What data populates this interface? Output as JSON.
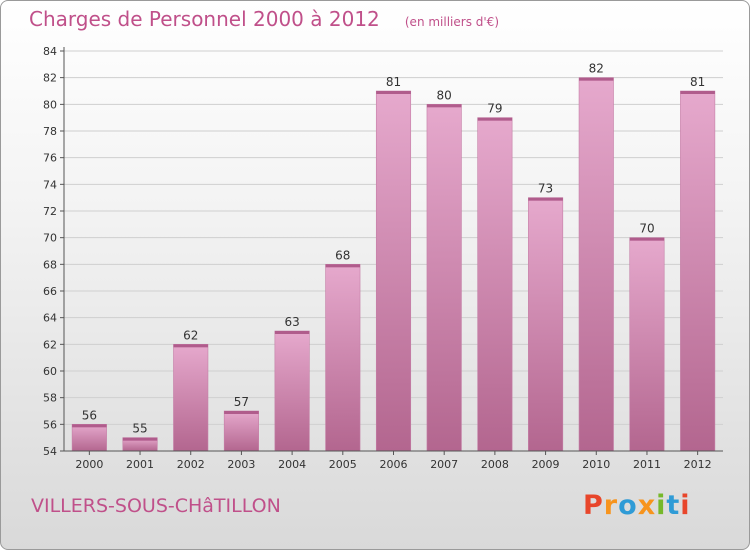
{
  "header": {
    "title": "Charges de Personnel 2000 à 2012",
    "subtitle": "(en milliers d'€)"
  },
  "footer": {
    "commune": "VILLERS-SOUS-CHâTILLON",
    "brand": "Proxiti",
    "brand_colors": [
      "#e8462b",
      "#f7941d",
      "#2f9bd6",
      "#f7941d",
      "#76b82a",
      "#2f9bd6",
      "#e8462b"
    ]
  },
  "chart_data": {
    "type": "bar",
    "title": "Charges de Personnel 2000 à 2012",
    "subtitle": "(en milliers d'€)",
    "xlabel": "",
    "ylabel": "",
    "categories": [
      "2000",
      "2001",
      "2002",
      "2003",
      "2004",
      "2005",
      "2006",
      "2007",
      "2008",
      "2009",
      "2010",
      "2011",
      "2012"
    ],
    "values": [
      56,
      55,
      62,
      57,
      63,
      68,
      81,
      80,
      79,
      73,
      82,
      70,
      81
    ],
    "ylim": [
      54,
      84
    ],
    "ytick_step": 2,
    "grid": true,
    "bar_color": "#d98fbb",
    "bar_color_light": "#e6a9cd",
    "bar_color_dark": "#b3668f"
  }
}
